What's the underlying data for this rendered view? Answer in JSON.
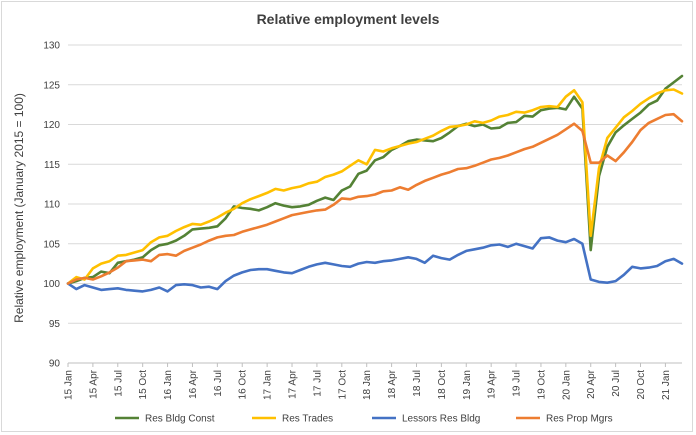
{
  "chart_data": {
    "type": "line",
    "title": "Relative employment levels",
    "xlabel": "",
    "ylabel": "Relative employment (January 2015 = 100)",
    "ylim": [
      90,
      130
    ],
    "yticks": [
      90,
      95,
      100,
      105,
      110,
      115,
      120,
      125,
      130
    ],
    "grid": "horizontal",
    "legend_position": "bottom",
    "x_range": [
      "2015-01",
      "2021-03"
    ],
    "x_tick_labels": [
      "15 Jan",
      "15 Apr",
      "15 Jul",
      "15 Oct",
      "16 Jan",
      "16 Apr",
      "16 Jul",
      "16 Oct",
      "17 Jan",
      "17 Apr",
      "17 Jul",
      "17 Oct",
      "18 Jan",
      "18 Apr",
      "18 Jul",
      "18 Oct",
      "19 Jan",
      "19 Apr",
      "19 Jul",
      "19 Oct",
      "20 Jan",
      "20 Apr",
      "20 Jul",
      "20 Oct",
      "21 Jan"
    ],
    "series": [
      {
        "name": "Res Bldg Const",
        "color": "#548235",
        "values": [
          100.0,
          100.3,
          100.7,
          100.8,
          101.5,
          101.3,
          102.6,
          102.8,
          103.0,
          103.3,
          104.2,
          104.8,
          105.0,
          105.4,
          106.0,
          106.8,
          106.9,
          107.0,
          107.2,
          108.2,
          109.7,
          109.5,
          109.4,
          109.2,
          109.6,
          110.1,
          109.8,
          109.6,
          109.7,
          109.9,
          110.4,
          110.8,
          110.5,
          111.7,
          112.2,
          113.8,
          114.2,
          115.5,
          115.9,
          116.8,
          117.3,
          117.9,
          118.1,
          118.0,
          117.9,
          118.3,
          119.0,
          119.8,
          120.1,
          119.8,
          120.0,
          119.5,
          119.6,
          120.2,
          120.3,
          121.1,
          121.0,
          121.8,
          122.0,
          122.1,
          121.9,
          123.5,
          122.0,
          104.2,
          113.5,
          117.2,
          119.0,
          119.9,
          120.7,
          121.5,
          122.5,
          123.0,
          124.5,
          125.3,
          126.1
        ]
      },
      {
        "name": "Res Trades",
        "color": "#ffc000",
        "values": [
          100.0,
          100.8,
          100.5,
          101.9,
          102.5,
          102.8,
          103.5,
          103.6,
          103.9,
          104.2,
          105.2,
          105.8,
          106.0,
          106.6,
          107.1,
          107.5,
          107.4,
          107.8,
          108.3,
          108.9,
          109.4,
          110.1,
          110.6,
          111.0,
          111.4,
          111.9,
          111.7,
          112.0,
          112.2,
          112.6,
          112.8,
          113.4,
          113.7,
          114.1,
          114.8,
          115.5,
          115.0,
          116.8,
          116.6,
          117.0,
          117.3,
          117.6,
          117.8,
          118.2,
          118.6,
          119.2,
          119.7,
          119.8,
          120.0,
          120.4,
          120.2,
          120.5,
          121.0,
          121.2,
          121.6,
          121.5,
          121.8,
          122.2,
          122.3,
          122.2,
          123.5,
          124.3,
          122.8,
          106.0,
          114.5,
          118.3,
          119.6,
          120.9,
          121.7,
          122.6,
          123.3,
          123.9,
          124.3,
          124.4,
          123.9
        ]
      },
      {
        "name": "Lessors Res Bldg",
        "color": "#4472c4",
        "values": [
          100.0,
          99.3,
          99.8,
          99.5,
          99.2,
          99.3,
          99.4,
          99.2,
          99.1,
          99.0,
          99.2,
          99.5,
          99.0,
          99.8,
          99.9,
          99.8,
          99.5,
          99.6,
          99.3,
          100.3,
          101.0,
          101.4,
          101.7,
          101.8,
          101.8,
          101.6,
          101.4,
          101.3,
          101.7,
          102.1,
          102.4,
          102.6,
          102.4,
          102.2,
          102.1,
          102.5,
          102.7,
          102.6,
          102.8,
          102.9,
          103.1,
          103.3,
          103.1,
          102.6,
          103.5,
          103.2,
          103.0,
          103.6,
          104.1,
          104.3,
          104.5,
          104.8,
          104.9,
          104.6,
          105.0,
          104.7,
          104.4,
          105.7,
          105.8,
          105.4,
          105.2,
          105.6,
          105.0,
          100.5,
          100.2,
          100.1,
          100.3,
          101.1,
          102.1,
          101.9,
          102.0,
          102.2,
          102.8,
          103.1,
          102.5
        ]
      },
      {
        "name": "Res Prop Mgrs",
        "color": "#ed7d31",
        "values": [
          100.0,
          100.5,
          100.7,
          100.5,
          100.9,
          101.4,
          102.0,
          102.8,
          102.9,
          103.0,
          102.8,
          103.6,
          103.7,
          103.5,
          104.1,
          104.5,
          104.9,
          105.4,
          105.8,
          106.0,
          106.1,
          106.5,
          106.8,
          107.1,
          107.4,
          107.8,
          108.2,
          108.6,
          108.8,
          109.0,
          109.2,
          109.3,
          109.9,
          110.7,
          110.6,
          110.9,
          111.0,
          111.2,
          111.6,
          111.7,
          112.1,
          111.8,
          112.4,
          112.9,
          113.3,
          113.7,
          114.0,
          114.4,
          114.5,
          114.8,
          115.2,
          115.6,
          115.8,
          116.1,
          116.5,
          116.9,
          117.2,
          117.7,
          118.2,
          118.7,
          119.4,
          120.1,
          119.2,
          115.2,
          115.2,
          116.1,
          115.4,
          116.5,
          117.8,
          119.3,
          120.2,
          120.7,
          121.2,
          121.3,
          120.4
        ]
      }
    ]
  }
}
